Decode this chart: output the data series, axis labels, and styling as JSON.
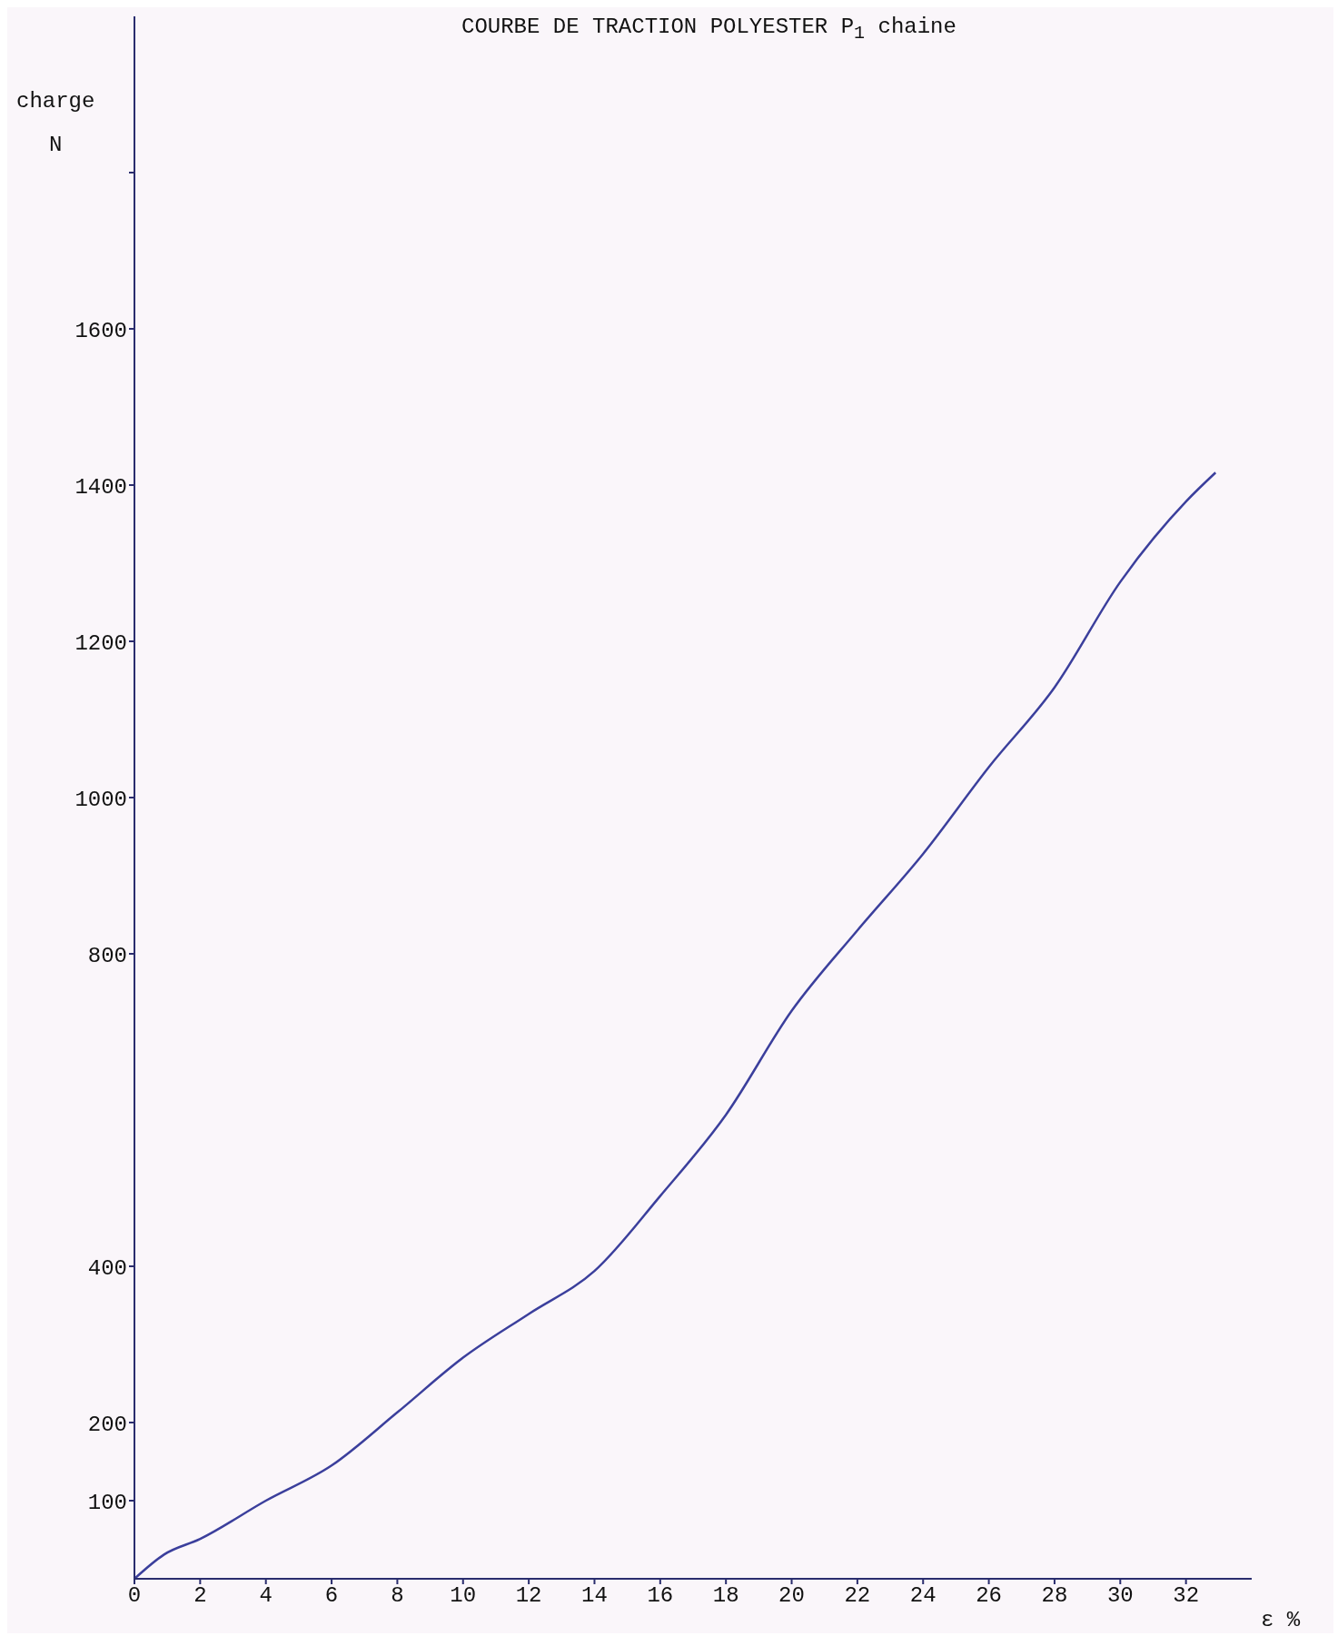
{
  "chart_data": {
    "type": "line",
    "title": "COURBE DE TRACTION POLYESTER P$_{1}$ chaine",
    "xlabel": "ε %",
    "ylabel": "charge\nN",
    "x": [
      0,
      0.9,
      2,
      4,
      6,
      8,
      10,
      12,
      14,
      16,
      18,
      20,
      22,
      24,
      26,
      28,
      30,
      32,
      32.9
    ],
    "series": [
      {
        "color": "#3b3f9c",
        "values": [
          0,
          31,
          51,
          100,
          145,
          213,
          283,
          339,
          394,
          490,
          594,
          727,
          830,
          928,
          1039,
          1141,
          1276,
          1379,
          1416
        ]
      }
    ],
    "xlim": [
      0,
      34
    ],
    "xticks": [
      0,
      2,
      4,
      6,
      8,
      10,
      12,
      14,
      16,
      18,
      20,
      22,
      24,
      26,
      28,
      30,
      32
    ],
    "ylim": [
      0,
      2000
    ],
    "yticks": [
      100,
      200,
      400,
      800,
      1000,
      1200,
      1400,
      1600,
      {
        "value": 1800,
        "label": null
      }
    ],
    "grid": false,
    "legend": false,
    "marker": "none",
    "line_style": "solid"
  }
}
